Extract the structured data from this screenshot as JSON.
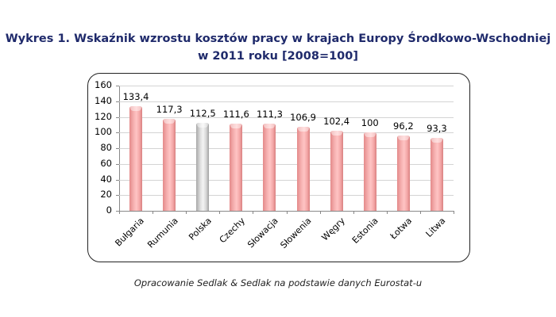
{
  "title_line1": "Wykres 1. Wskaźnik wzrostu kosztów pracy w krajach Europy Środkowo-Wschodniej",
  "title_line2": "w 2011 roku [2008=100]",
  "caption": "Opracowanie Sedlak & Sedlak na podstawie danych Eurostat-u",
  "y_ticks": [
    "0",
    "20",
    "40",
    "60",
    "80",
    "100",
    "120",
    "140",
    "160"
  ],
  "bars": [
    {
      "label": "Bułgaria",
      "value_label": "133,4"
    },
    {
      "label": "Rumunia",
      "value_label": "117,3"
    },
    {
      "label": "Polska",
      "value_label": "112,5"
    },
    {
      "label": "Czechy",
      "value_label": "111,6"
    },
    {
      "label": "Słowacja",
      "value_label": "111,3"
    },
    {
      "label": "Słowenia",
      "value_label": "106,9"
    },
    {
      "label": "Węgry",
      "value_label": "102,4"
    },
    {
      "label": "Estonia",
      "value_label": "100"
    },
    {
      "label": "Łotwa",
      "value_label": "96,2"
    },
    {
      "label": "Litwa",
      "value_label": "93,3"
    }
  ],
  "colors": {
    "bar": "#f4a9a9",
    "highlight": "#d9d9d9",
    "title": "#1f2a6b"
  },
  "chart_data": {
    "type": "bar",
    "title": "Wykres 1. Wskaźnik wzrostu kosztów pracy w krajach Europy Środkowo-Wschodniej w 2011 roku [2008=100]",
    "categories": [
      "Bułgaria",
      "Rumunia",
      "Polska",
      "Czechy",
      "Słowacja",
      "Słowenia",
      "Węgry",
      "Estonia",
      "Łotwa",
      "Litwa"
    ],
    "values": [
      133.4,
      117.3,
      112.5,
      111.6,
      111.3,
      106.9,
      102.4,
      100,
      96.2,
      93.3
    ],
    "highlighted": "Polska",
    "xlabel": "",
    "ylabel": "",
    "ylim": [
      0,
      160
    ],
    "yticks": [
      0,
      20,
      40,
      60,
      80,
      100,
      120,
      140,
      160
    ],
    "grid": true,
    "legend": "none",
    "data_labels": true,
    "source": "Opracowanie Sedlak & Sedlak na podstawie danych Eurostat-u"
  }
}
